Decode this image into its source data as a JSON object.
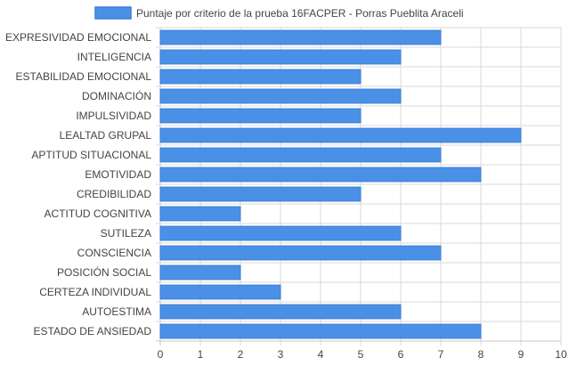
{
  "chart_data": {
    "type": "bar",
    "orientation": "horizontal",
    "categories": [
      "EXPRESIVIDAD EMOCIONAL",
      "INTELIGENCIA",
      "ESTABILIDAD EMOCIONAL",
      "DOMINACIÓN",
      "IMPULSIVIDAD",
      "LEALTAD GRUPAL",
      "APTITUD SITUACIONAL",
      "EMOTIVIDAD",
      "CREDIBILIDAD",
      "ACTITUD COGNITIVA",
      "SUTILEZA",
      "CONSCIENCIA",
      "POSICIÓN SOCIAL",
      "CERTEZA INDIVIDUAL",
      "AUTOESTIMA",
      "ESTADO DE ANSIEDAD"
    ],
    "series": [
      {
        "name": "Puntaje por criterio de la prueba 16FACPER - Porras Pueblita Araceli",
        "values": [
          7,
          6,
          5,
          6,
          5,
          9,
          7,
          8,
          5,
          2,
          6,
          7,
          2,
          3,
          6,
          8
        ]
      }
    ],
    "xlim": [
      0,
      10
    ],
    "xticks": [
      "0",
      "1",
      "2",
      "3",
      "4",
      "5",
      "6",
      "7",
      "8",
      "9",
      "10"
    ],
    "grid": true,
    "legend": "top-center",
    "colors": {
      "bar_fill": "#4a90e6",
      "bar_stroke": "#3b7fd6",
      "grid": "#d9d9d9",
      "axis": "#c8c8c8",
      "text": "#444444"
    }
  }
}
